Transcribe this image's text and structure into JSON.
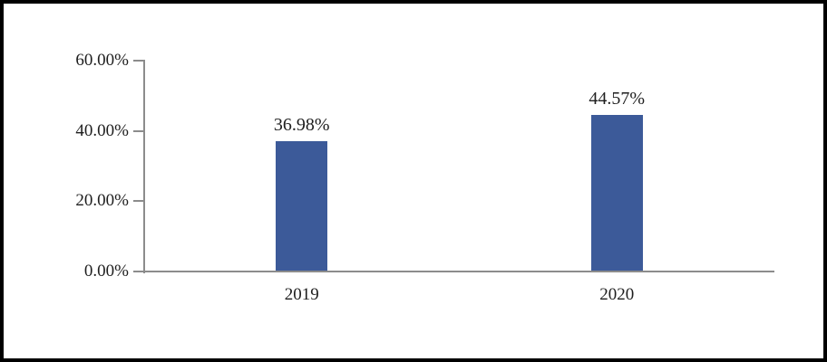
{
  "chart_data": {
    "type": "bar",
    "title": "",
    "xlabel": "",
    "ylabel": "",
    "categories": [
      "2019",
      "2020"
    ],
    "values": [
      36.98,
      44.57
    ],
    "data_labels": [
      "36.98%",
      "44.57%"
    ],
    "y_axis": {
      "min": 0,
      "max": 60,
      "ticks": [
        {
          "value": 0,
          "label": "0.00%"
        },
        {
          "value": 20,
          "label": "20.00%"
        },
        {
          "value": 40,
          "label": "40.00%"
        },
        {
          "value": 60,
          "label": "60.00%"
        }
      ]
    },
    "legend": "none",
    "grid": false,
    "colors": {
      "bar": "#3c5a99",
      "axis": "#8c8c8c",
      "text": "#1e1e1e",
      "frame_border": "#000000",
      "background": "#ffffff"
    }
  }
}
